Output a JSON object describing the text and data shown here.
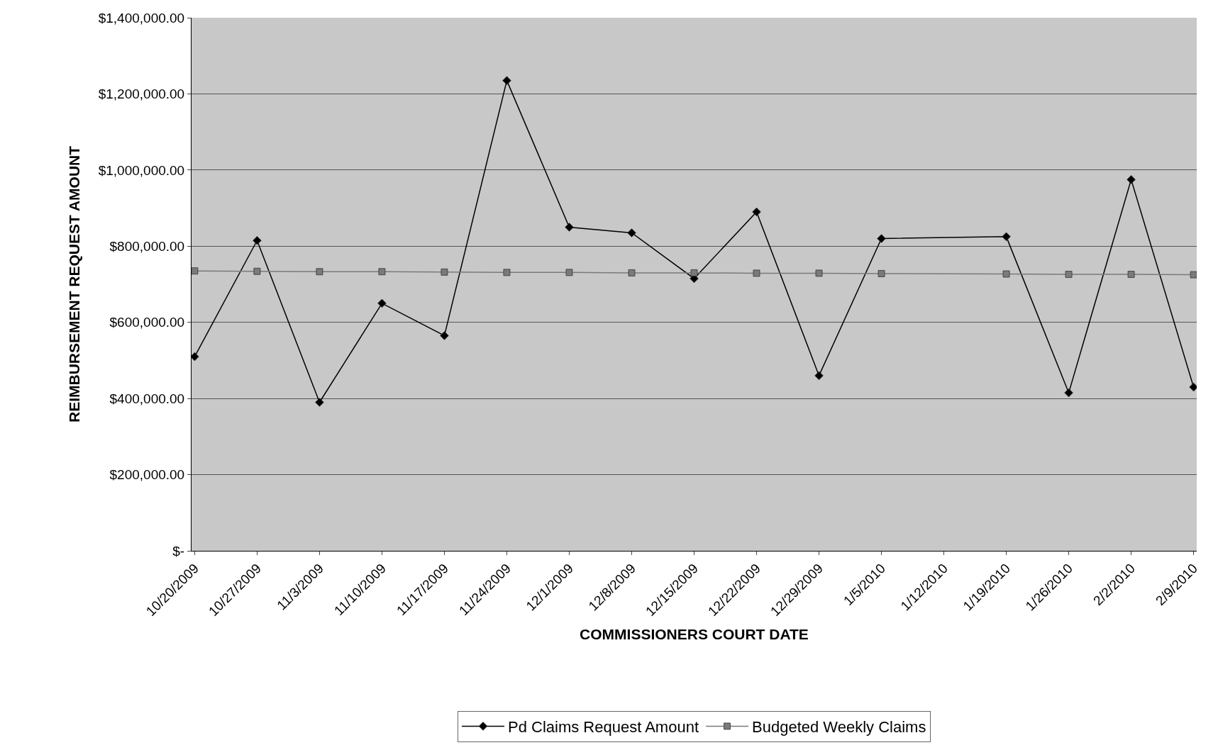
{
  "chart_data": {
    "type": "line",
    "xlabel": "COMMISSIONERS COURT DATE",
    "ylabel": "REIMBURSEMENT REQUEST AMOUNT",
    "categories": [
      "10/20/2009",
      "10/27/2009",
      "11/3/2009",
      "11/10/2009",
      "11/17/2009",
      "11/24/2009",
      "12/1/2009",
      "12/8/2009",
      "12/15/2009",
      "12/22/2009",
      "12/29/2009",
      "1/5/2010",
      "1/12/2010",
      "1/19/2010",
      "1/26/2010",
      "2/2/2010",
      "2/9/2010"
    ],
    "series": [
      {
        "name": "Pd Claims Request Amount",
        "color": "#000000",
        "marker": "diamond",
        "values": [
          510000,
          815000,
          390000,
          650000,
          565000,
          1235000,
          850000,
          835000,
          715000,
          890000,
          460000,
          820000,
          null,
          825000,
          415000,
          975000,
          430000
        ]
      },
      {
        "name": "Budgeted Weekly Claims",
        "color": "#7a7a7a",
        "marker": "square",
        "values": [
          735000,
          734000,
          733000,
          733000,
          732000,
          731000,
          731000,
          730000,
          730000,
          729000,
          729000,
          728000,
          null,
          727000,
          726000,
          726000,
          725000
        ]
      }
    ],
    "ylim": [
      0,
      1400000
    ],
    "yticks": [
      {
        "value": 0,
        "label": "$-"
      },
      {
        "value": 200000,
        "label": "$200,000.00"
      },
      {
        "value": 400000,
        "label": "$400,000.00"
      },
      {
        "value": 600000,
        "label": "$600,000.00"
      },
      {
        "value": 800000,
        "label": "$800,000.00"
      },
      {
        "value": 1000000,
        "label": "$1,000,000.00"
      },
      {
        "value": 1200000,
        "label": "$1,200,000.00"
      },
      {
        "value": 1400000,
        "label": "$1,400,000.00"
      }
    ],
    "grid": "y",
    "legend": "bottom",
    "line_style": "solid"
  }
}
